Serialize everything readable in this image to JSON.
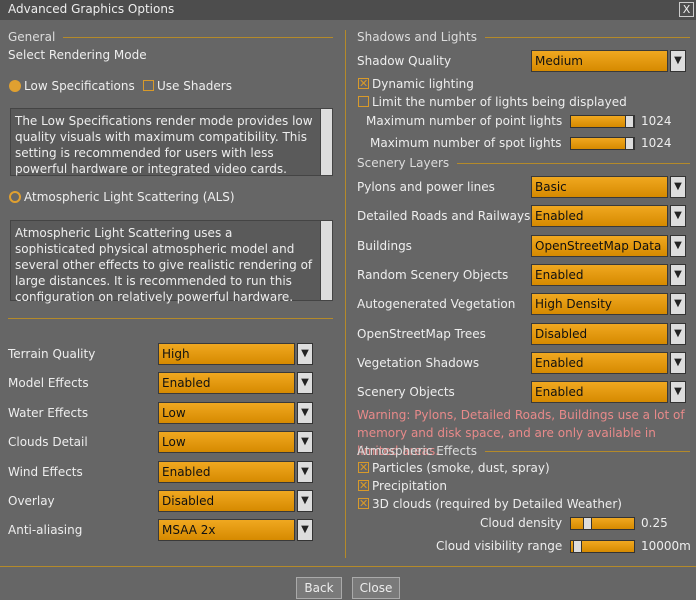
{
  "window": {
    "title": "Advanced Graphics Options",
    "close": "X"
  },
  "general": {
    "heading": "General",
    "mode_label": "Select Rendering Mode",
    "low_spec": {
      "label": "Low Specifications",
      "selected": true,
      "description": "The Low Specifications render mode provides low quality visuals with maximum compatibility. This setting is recommended for users with less powerful hardware or integrated video cards."
    },
    "use_shaders": {
      "label": "Use Shaders",
      "checked": false
    },
    "als": {
      "label": "Atmospheric Light Scattering (ALS)",
      "selected": false,
      "description": "Atmospheric Light Scattering uses a sophisticated physical atmospheric model and several other effects to give realistic rendering of large distances. It is recommended to run this configuration on relatively powerful hardware."
    },
    "settings": [
      {
        "label": "Terrain Quality",
        "value": "High"
      },
      {
        "label": "Model Effects",
        "value": "Enabled"
      },
      {
        "label": "Water Effects",
        "value": "Low"
      },
      {
        "label": "Clouds Detail",
        "value": "Low"
      },
      {
        "label": "Wind Effects",
        "value": "Enabled"
      },
      {
        "label": "Overlay",
        "value": "Disabled"
      },
      {
        "label": "Anti-aliasing",
        "value": "MSAA 2x"
      }
    ]
  },
  "shadows": {
    "heading": "Shadows and Lights",
    "quality": {
      "label": "Shadow Quality",
      "value": "Medium"
    },
    "checks": [
      {
        "label": "Dynamic lighting",
        "checked": true
      },
      {
        "label": "Limit the number of lights being displayed",
        "checked": false
      }
    ],
    "sliders": [
      {
        "label": "Maximum number of point lights",
        "value": 1024
      },
      {
        "label": "Maximum number of spot lights",
        "value": 1024
      }
    ]
  },
  "scenery": {
    "heading": "Scenery Layers",
    "settings": [
      {
        "label": "Pylons and power lines",
        "value": "Basic"
      },
      {
        "label": "Detailed Roads and Railways",
        "value": "Enabled"
      },
      {
        "label": "Buildings",
        "value": "OpenStreetMap Data"
      },
      {
        "label": "Random Scenery Objects",
        "value": "Enabled"
      },
      {
        "label": "Autogenerated Vegetation",
        "value": "High Density"
      },
      {
        "label": "OpenStreetMap Trees",
        "value": "Disabled"
      },
      {
        "label": "Vegetation Shadows",
        "value": "Enabled"
      },
      {
        "label": "Scenery Objects",
        "value": "Enabled"
      }
    ],
    "warning": "Warning: Pylons, Detailed Roads, Buildings use a lot of memory and disk space, and are only available in limited areas."
  },
  "atmospheric": {
    "heading": "Atmospheric Effects",
    "checks": [
      {
        "label": "Particles (smoke, dust, spray)",
        "checked": true
      },
      {
        "label": "Precipitation",
        "checked": true
      },
      {
        "label": "3D clouds (required by Detailed Weather)",
        "checked": true
      }
    ],
    "sliders": [
      {
        "label": "Cloud density",
        "value": 0.25
      },
      {
        "label": "Cloud visibility range",
        "value": "10000m"
      }
    ]
  },
  "buttons": [
    "Back",
    "Close"
  ]
}
